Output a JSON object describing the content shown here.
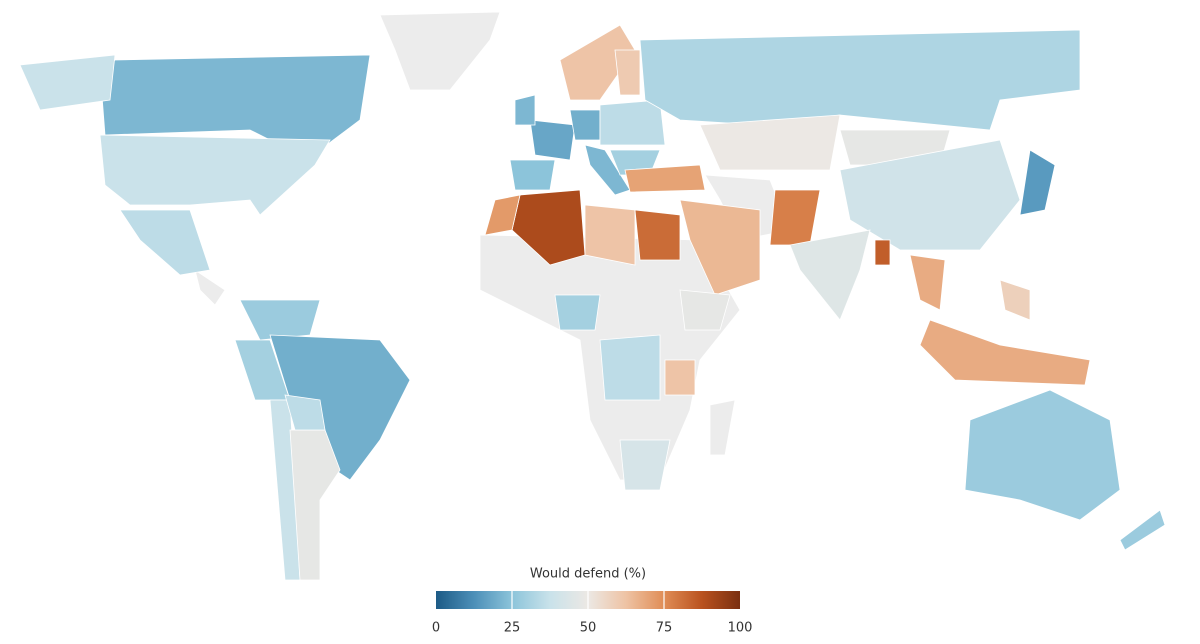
{
  "legend": {
    "title": "Would defend (%)",
    "ticks": [
      0,
      25,
      50,
      75,
      100
    ],
    "range": [
      0,
      100
    ],
    "colors": [
      "#1d5b86",
      "#4c8fb8",
      "#8cc4da",
      "#c9e2ea",
      "#ece8e4",
      "#eec3a4",
      "#e08d56",
      "#b9521f",
      "#7a2f10"
    ]
  },
  "regions": {
    "values": [
      22,
      38,
      38,
      35,
      28,
      20,
      30,
      38,
      48,
      35,
      25,
      18,
      22,
      20,
      22,
      62,
      60,
      35,
      30,
      32,
      50,
      48,
      40,
      15,
      70,
      65,
      78,
      45,
      85,
      90,
      72,
      62,
      82,
      30,
      35,
      62,
      48,
      42,
      68,
      68,
      58,
      28,
      28
    ]
  }
}
